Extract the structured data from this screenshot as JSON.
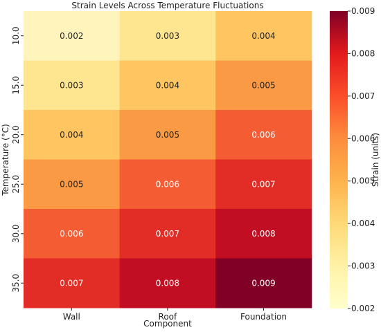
{
  "chart_data": {
    "type": "heatmap",
    "title": "Strain Levels Across Temperature Fluctuations",
    "xlabel": "Component",
    "ylabel": "Temperature (°C)",
    "colorbar_label": "Strain (units)",
    "x_categories": [
      "Wall",
      "Roof",
      "Foundation"
    ],
    "y_categories": [
      "10.0",
      "15.0",
      "20.0",
      "25.0",
      "30.0",
      "35.0"
    ],
    "values": [
      [
        0.002,
        0.003,
        0.004
      ],
      [
        0.003,
        0.004,
        0.005
      ],
      [
        0.004,
        0.005,
        0.006
      ],
      [
        0.005,
        0.006,
        0.007
      ],
      [
        0.006,
        0.007,
        0.008
      ],
      [
        0.007,
        0.008,
        0.009
      ]
    ],
    "cell_labels": [
      [
        "0.002",
        "0.003",
        "0.004"
      ],
      [
        "0.003",
        "0.004",
        "0.005"
      ],
      [
        "0.004",
        "0.005",
        "0.006"
      ],
      [
        "0.005",
        "0.006",
        "0.007"
      ],
      [
        "0.006",
        "0.007",
        "0.008"
      ],
      [
        "0.007",
        "0.008",
        "0.009"
      ]
    ],
    "colorbar_range": [
      0.002,
      0.009
    ],
    "colorbar_ticks": [
      "0.002",
      "0.003",
      "0.004",
      "0.005",
      "0.006",
      "0.007",
      "0.008",
      "0.009"
    ],
    "colormap": "YlOrRd",
    "colors": {
      "0.002": "#FFF4BC",
      "0.003": "#FEE590",
      "0.004": "#FEC561",
      "0.005": "#FB9A45",
      "0.006": "#F45C34",
      "0.007": "#E22C26",
      "0.008": "#C20E23",
      "0.009": "#800026"
    }
  }
}
